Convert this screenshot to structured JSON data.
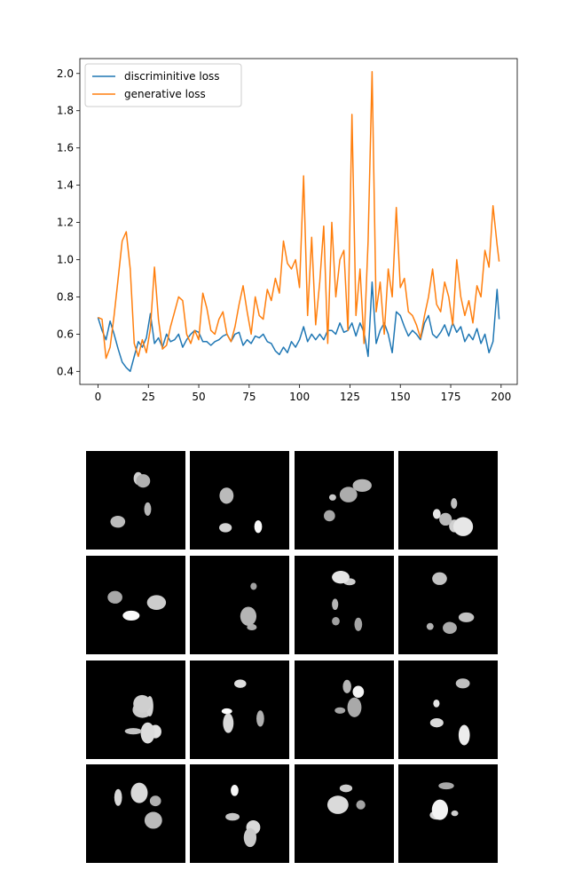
{
  "chart_data": {
    "type": "line",
    "title": "",
    "xlabel": "",
    "ylabel": "",
    "xlim": [
      -9,
      208
    ],
    "ylim": [
      0.33,
      2.08
    ],
    "xticks": [
      0,
      25,
      50,
      75,
      100,
      125,
      150,
      175,
      200
    ],
    "yticks": [
      0.4,
      0.6,
      0.8,
      1.0,
      1.2,
      1.4,
      1.6,
      1.8,
      2.0
    ],
    "xtick_labels": [
      "0",
      "25",
      "50",
      "75",
      "100",
      "125",
      "150",
      "175",
      "200"
    ],
    "ytick_labels": [
      "0.4",
      "0.6",
      "0.8",
      "1.0",
      "1.2",
      "1.4",
      "1.6",
      "1.8",
      "2.0"
    ],
    "legend_position": "top-left",
    "grid": false,
    "series": [
      {
        "name": "discriminitive loss",
        "color": "#1f77b4",
        "x": [
          0,
          2,
          4,
          6,
          8,
          10,
          12,
          14,
          16,
          18,
          20,
          22,
          24,
          26,
          28,
          30,
          32,
          34,
          36,
          38,
          40,
          42,
          44,
          46,
          48,
          50,
          52,
          54,
          56,
          58,
          60,
          62,
          64,
          66,
          68,
          70,
          72,
          74,
          76,
          78,
          80,
          82,
          84,
          86,
          88,
          90,
          92,
          94,
          96,
          98,
          100,
          102,
          104,
          106,
          108,
          110,
          112,
          114,
          116,
          118,
          120,
          122,
          124,
          126,
          128,
          130,
          132,
          134,
          136,
          138,
          140,
          142,
          144,
          146,
          148,
          150,
          152,
          154,
          156,
          158,
          160,
          162,
          164,
          166,
          168,
          170,
          172,
          174,
          176,
          178,
          180,
          182,
          184,
          186,
          188,
          190,
          192,
          194,
          196,
          198,
          199
        ],
        "values": [
          0.69,
          0.62,
          0.57,
          0.67,
          0.6,
          0.52,
          0.45,
          0.42,
          0.4,
          0.48,
          0.56,
          0.53,
          0.58,
          0.71,
          0.55,
          0.58,
          0.53,
          0.6,
          0.56,
          0.57,
          0.6,
          0.53,
          0.57,
          0.6,
          0.62,
          0.61,
          0.56,
          0.56,
          0.54,
          0.56,
          0.57,
          0.59,
          0.6,
          0.56,
          0.6,
          0.61,
          0.54,
          0.57,
          0.55,
          0.59,
          0.58,
          0.6,
          0.56,
          0.55,
          0.51,
          0.49,
          0.53,
          0.5,
          0.56,
          0.53,
          0.57,
          0.64,
          0.56,
          0.6,
          0.57,
          0.6,
          0.57,
          0.62,
          0.62,
          0.6,
          0.66,
          0.61,
          0.62,
          0.66,
          0.59,
          0.66,
          0.61,
          0.48,
          0.88,
          0.55,
          0.62,
          0.66,
          0.6,
          0.5,
          0.72,
          0.7,
          0.64,
          0.59,
          0.62,
          0.6,
          0.57,
          0.66,
          0.7,
          0.6,
          0.58,
          0.61,
          0.65,
          0.59,
          0.66,
          0.61,
          0.64,
          0.56,
          0.6,
          0.57,
          0.63,
          0.55,
          0.6,
          0.5,
          0.56,
          0.84,
          0.68
        ]
      },
      {
        "name": "generative loss",
        "color": "#ff7f0e",
        "x": [
          0,
          2,
          4,
          6,
          8,
          10,
          12,
          14,
          16,
          18,
          20,
          22,
          24,
          26,
          28,
          30,
          32,
          34,
          36,
          38,
          40,
          42,
          44,
          46,
          48,
          50,
          52,
          54,
          56,
          58,
          60,
          62,
          64,
          66,
          68,
          70,
          72,
          74,
          76,
          78,
          80,
          82,
          84,
          86,
          88,
          90,
          92,
          94,
          96,
          98,
          100,
          102,
          104,
          106,
          108,
          110,
          112,
          114,
          116,
          118,
          120,
          122,
          124,
          126,
          128,
          130,
          132,
          134,
          136,
          138,
          140,
          142,
          144,
          146,
          148,
          150,
          152,
          154,
          156,
          158,
          160,
          162,
          164,
          166,
          168,
          170,
          172,
          174,
          176,
          178,
          180,
          182,
          184,
          186,
          188,
          190,
          192,
          194,
          196,
          198,
          199
        ],
        "values": [
          0.69,
          0.68,
          0.47,
          0.53,
          0.7,
          0.9,
          1.1,
          1.15,
          0.95,
          0.55,
          0.48,
          0.57,
          0.5,
          0.63,
          0.96,
          0.68,
          0.52,
          0.54,
          0.64,
          0.72,
          0.8,
          0.78,
          0.6,
          0.55,
          0.62,
          0.57,
          0.82,
          0.74,
          0.62,
          0.6,
          0.68,
          0.72,
          0.6,
          0.56,
          0.64,
          0.76,
          0.86,
          0.72,
          0.6,
          0.8,
          0.7,
          0.68,
          0.84,
          0.78,
          0.9,
          0.82,
          1.1,
          0.98,
          0.95,
          1.0,
          0.85,
          1.45,
          0.7,
          1.12,
          0.65,
          0.88,
          1.18,
          0.55,
          1.2,
          0.8,
          1.0,
          1.05,
          0.62,
          1.78,
          0.7,
          0.95,
          0.55,
          1.1,
          2.01,
          0.72,
          0.88,
          0.6,
          0.95,
          0.8,
          1.28,
          0.85,
          0.9,
          0.72,
          0.7,
          0.65,
          0.58,
          0.7,
          0.8,
          0.95,
          0.76,
          0.72,
          0.88,
          0.8,
          0.65,
          1.0,
          0.8,
          0.7,
          0.78,
          0.66,
          0.86,
          0.8,
          1.05,
          0.96,
          1.29,
          1.08,
          0.99
        ]
      }
    ]
  },
  "samples": {
    "rows": 4,
    "cols": 4,
    "content": "generated digit images (16 grayscale samples)"
  }
}
